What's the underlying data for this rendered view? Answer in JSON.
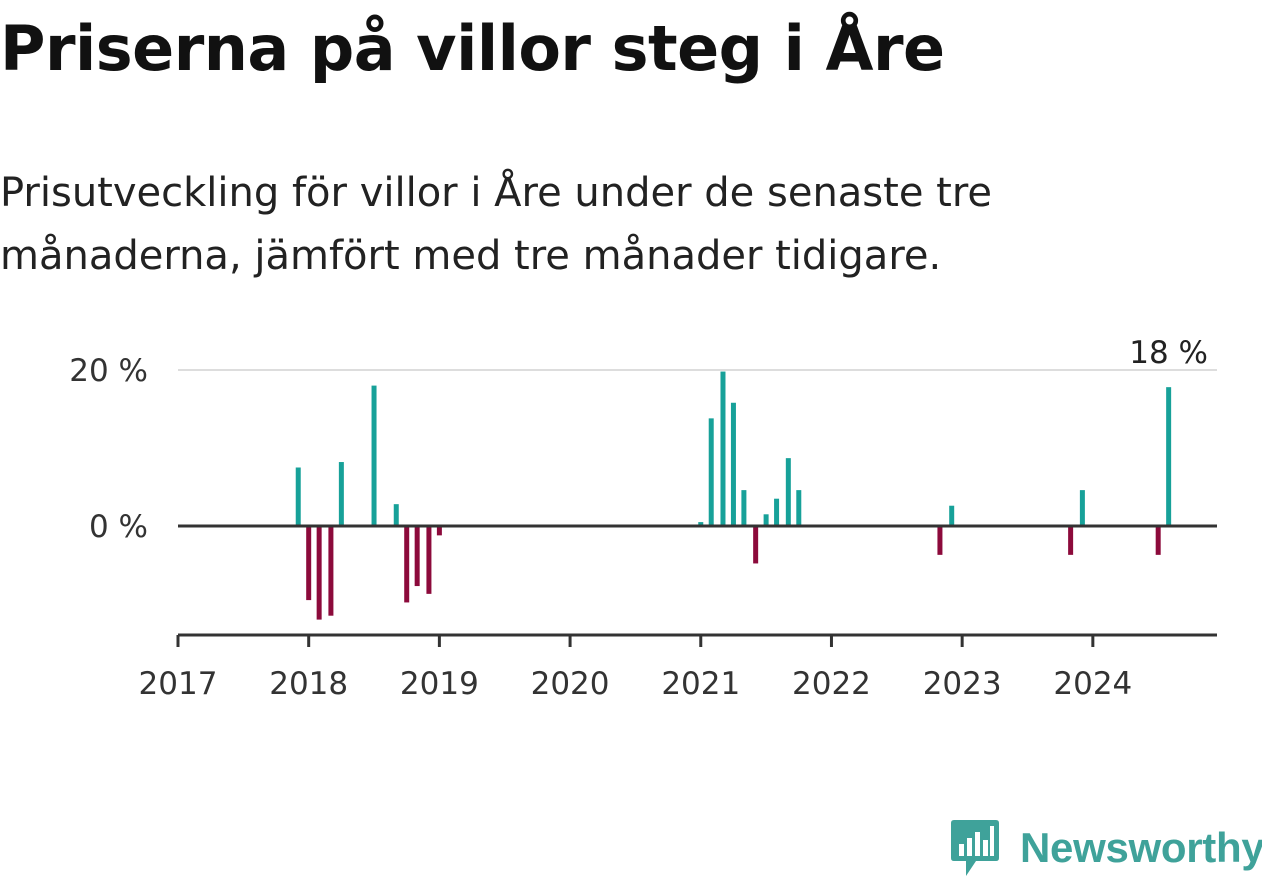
{
  "title": "Priserna på villor steg i Åre",
  "subtitle": "Prisutveckling för villor i Åre under de senaste tre månaderna, jämfört med tre månader tidigare.",
  "logo": {
    "text": "Newsworthy",
    "icon": "newsworthy-chart-icon"
  },
  "colors": {
    "positive": "#17a199",
    "negative": "#8c0a3b",
    "axis": "#333333",
    "grid": "#dddddd",
    "text": "#333333"
  },
  "chart_data": {
    "type": "bar",
    "ylabel": "",
    "xlabel": "",
    "ylim": [
      -14,
      20
    ],
    "xlim": [
      2017.0,
      2024.95
    ],
    "y_ticks": [
      0,
      20
    ],
    "y_tick_labels": [
      "0 %",
      "20 %"
    ],
    "x_ticks": [
      2017,
      2018,
      2019,
      2020,
      2021,
      2022,
      2023,
      2024
    ],
    "x_tick_labels": [
      "2017",
      "2018",
      "2019",
      "2020",
      "2021",
      "2022",
      "2023",
      "2024"
    ],
    "annotation": {
      "text": "18 %",
      "x": 2024.58,
      "y": 18
    },
    "series": [
      {
        "x": [
          2017.92,
          2018.0,
          2018.08,
          2018.17,
          2018.25,
          2018.5,
          2018.67,
          2018.75,
          2018.83,
          2018.92,
          2019.0,
          2021.0,
          2021.08,
          2021.17,
          2021.25,
          2021.33,
          2021.42,
          2021.5,
          2021.58,
          2021.67,
          2021.75,
          2022.83,
          2022.92,
          2023.83,
          2023.92,
          2024.5,
          2024.58
        ],
        "values": [
          7.5,
          -9.5,
          -12,
          -11.5,
          8.2,
          18,
          2.8,
          -9.8,
          -7.7,
          -8.7,
          -1.2,
          0.5,
          13.8,
          19.8,
          15.8,
          4.6,
          -4.8,
          1.5,
          3.5,
          8.7,
          4.6,
          -3.7,
          2.6,
          -3.7,
          4.6,
          -3.7,
          17.8
        ]
      }
    ]
  }
}
